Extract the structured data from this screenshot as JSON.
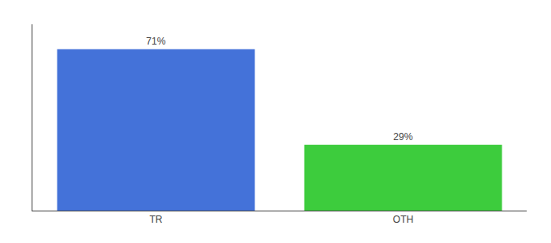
{
  "chart_data": {
    "type": "bar",
    "categories": [
      "TR",
      "OTH"
    ],
    "values": [
      71,
      29
    ],
    "colors": [
      "#4472d9",
      "#3dcc3d"
    ],
    "value_labels": [
      "71%",
      "29%"
    ],
    "data_labels": true,
    "ylim": [
      0,
      82
    ],
    "tick_labels": "x",
    "grid": false
  }
}
